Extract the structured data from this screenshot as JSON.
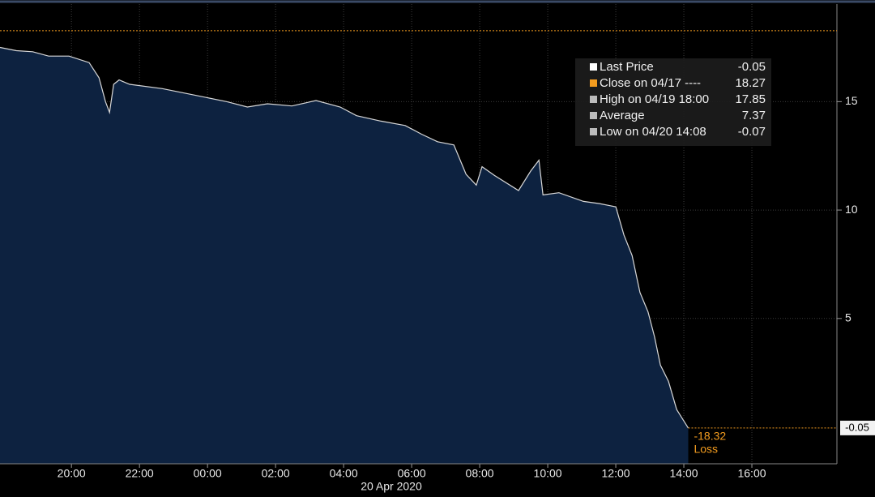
{
  "chart_data": {
    "type": "area",
    "x_date_label": "20 Apr 2020",
    "x": [
      -6.1,
      -5.62,
      -5.14,
      -4.67,
      -4.07,
      -3.48,
      -3.19,
      -3.0,
      -2.88,
      -2.76,
      -2.6,
      -2.29,
      -1.33,
      -0.38,
      0.57,
      1.17,
      1.76,
      2.48,
      3.19,
      3.9,
      4.38,
      5.1,
      5.81,
      6.29,
      6.76,
      7.24,
      7.6,
      7.9,
      8.07,
      8.43,
      9.14,
      9.5,
      9.74,
      9.86,
      10.33,
      11.05,
      11.52,
      12.0,
      12.24,
      12.48,
      12.71,
      12.95,
      13.14,
      13.31,
      13.55,
      13.79,
      14.13
    ],
    "series": [
      {
        "name": "Last Price",
        "color": "#d8d8d8",
        "fill": "#0d2240",
        "values": [
          17.5,
          17.35,
          17.3,
          17.1,
          17.1,
          16.8,
          16.1,
          15.0,
          14.5,
          15.8,
          16.0,
          15.8,
          15.6,
          15.3,
          15.0,
          14.75,
          14.9,
          14.8,
          15.05,
          14.75,
          14.35,
          14.1,
          13.9,
          13.5,
          13.15,
          13.0,
          11.65,
          11.15,
          12.0,
          11.6,
          10.9,
          11.8,
          12.3,
          10.7,
          10.8,
          10.4,
          10.3,
          10.15,
          8.85,
          7.9,
          6.2,
          5.3,
          4.15,
          2.85,
          2.1,
          0.8,
          -0.05
        ]
      }
    ],
    "xlim": [
      -6.1,
      18.5
    ],
    "xticks": [
      {
        "value": -4,
        "label": "20:00"
      },
      {
        "value": -2,
        "label": "22:00"
      },
      {
        "value": 0,
        "label": "00:00"
      },
      {
        "value": 2,
        "label": "02:00"
      },
      {
        "value": 4,
        "label": "04:00"
      },
      {
        "value": 6,
        "label": "06:00"
      },
      {
        "value": 8,
        "label": "08:00"
      },
      {
        "value": 10,
        "label": "10:00"
      },
      {
        "value": 12,
        "label": "12:00"
      },
      {
        "value": 14,
        "label": "14:00"
      },
      {
        "value": 16,
        "label": "16:00"
      }
    ],
    "ylim": [
      -1.7,
      19.5
    ],
    "yticks": [
      5,
      10,
      15
    ],
    "grid": true,
    "legend": [
      {
        "label": "Last Price",
        "value": -0.05,
        "color": "#ffffff"
      },
      {
        "label": "Close on 04/17 ----",
        "value": 18.27,
        "color": "#f39c1f"
      },
      {
        "label": "High on 04/19 18:00",
        "value": 17.85,
        "color": "#bbbbbb"
      },
      {
        "label": "Average",
        "value": 7.37,
        "color": "#bbbbbb"
      },
      {
        "label": "Low on 04/20 14:08",
        "value": -0.07,
        "color": "#bbbbbb"
      }
    ],
    "annotation": {
      "value": -18.32,
      "text": "Loss",
      "color": "#f39c1f"
    }
  }
}
